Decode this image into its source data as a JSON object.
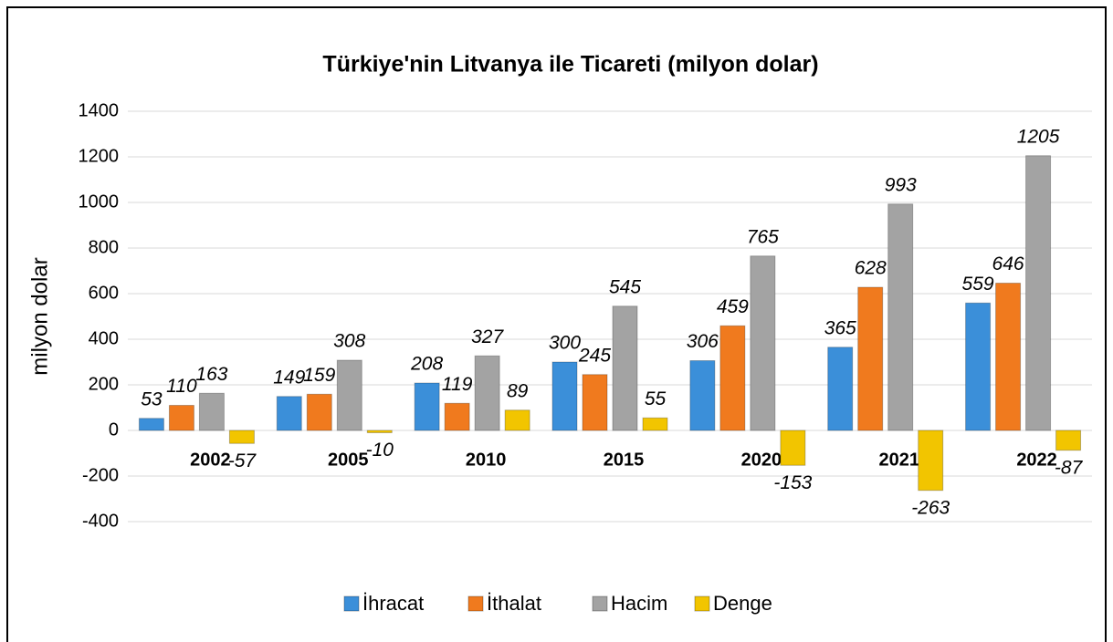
{
  "chart_data": {
    "type": "bar",
    "title": "Türkiye'nin Litvanya ile Ticareti (milyon dolar)",
    "y_label": "milyon dolar",
    "categories": [
      "2002",
      "2005",
      "2010",
      "2015",
      "2020",
      "2021",
      "2022"
    ],
    "series": [
      {
        "name": "İhracat",
        "color": "#3b8fd9",
        "values": [
          53,
          149,
          208,
          300,
          306,
          365,
          559
        ]
      },
      {
        "name": "İthalat",
        "color": "#f07a1e",
        "values": [
          110,
          159,
          119,
          245,
          459,
          628,
          646
        ]
      },
      {
        "name": "Hacim",
        "color": "#a3a3a3",
        "values": [
          163,
          308,
          327,
          545,
          765,
          993,
          1205
        ]
      },
      {
        "name": "Denge",
        "color": "#f2c500",
        "values": [
          -57,
          -10,
          89,
          55,
          -153,
          -263,
          -87
        ]
      }
    ],
    "ylim": [
      -400,
      1400
    ],
    "yticks": [
      -400,
      -200,
      0,
      200,
      400,
      600,
      800,
      1000,
      1200,
      1400
    ],
    "grid": true,
    "legend": "bottom"
  }
}
